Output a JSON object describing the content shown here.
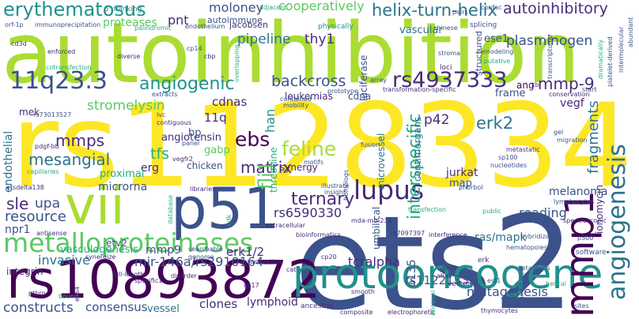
{
  "colors": {
    "background": "#ffffff",
    "purple": "#440154",
    "indigo": "#472c7a",
    "blue": "#3b528b",
    "steel": "#2c728e",
    "teal": "#21908d",
    "green": "#27ad81",
    "lime": "#5cc863",
    "yellowgreen": "#aadc32",
    "yellow": "#fde725"
  },
  "words": [
    "autoinhibition",
    "rs1128334",
    "ets2",
    "rs10893872",
    "protooncogene",
    "vii",
    "p51",
    "metalloproteinases",
    "mmp1",
    "angiogenesis",
    "11q23.3",
    "angiogenic",
    "backcross",
    "rs4937333",
    "lupus",
    "erythematosus",
    "proteases",
    "pnt",
    "moloney",
    "autoimmune",
    "cooperatively",
    "helix-turn-helix",
    "autoinhibitory",
    "plasminogen",
    "pipeline",
    "thy1",
    "ese1",
    "vascular",
    "mmp-9",
    "ang",
    "endothelial",
    "stromelysin",
    "mmps",
    "mesangial",
    "ebs",
    "fli1",
    "feline",
    "p42",
    "erk2",
    "fragments",
    "interspecific",
    "ternary",
    "rs6590330",
    "sle",
    "upa",
    "resource",
    "reading",
    "mmp9",
    "npr1",
    "invasive",
    "mir-146a/rs2910164",
    "integrin",
    "constructs",
    "consensus",
    "vessel",
    "clones",
    "lymphoid",
    "rs11221332",
    "mutagenesis",
    "tcralpha",
    "ras/mapk",
    "vasculogenesis",
    "erk1/2",
    "p135",
    "ionomycin",
    "melanoma",
    "jurkat",
    "map",
    "tfs",
    "erg",
    "matrix",
    "chicken",
    "angiotensin",
    "11q",
    "gabp",
    "bp",
    "synergy",
    "cdnas",
    "leukemias",
    "frame",
    "cdna",
    "luciferase",
    "han",
    "threonine",
    "centimorgans",
    "microvessel",
    "microrna",
    "proximal",
    "vegf",
    "etv2",
    "umbilical",
    "mek",
    "5'-flanking",
    "adjacent",
    "pairs",
    "confac",
    "orf-1p",
    "immunoprecipitation",
    "palindromic",
    "endothelium",
    "jacobsen",
    "physically",
    "chinese",
    "splicing",
    "cd3d",
    "cp14",
    "stroma",
    "remodeling",
    "putative",
    "transcriptome",
    "enforced",
    "diverse",
    "cbp",
    "overlapping",
    "loci",
    "cotransfection",
    "array",
    "transformation-specific",
    "kb",
    "start",
    "extracts",
    "prototype",
    "conservation",
    "contained",
    "mobility",
    "structured",
    "rs73013527",
    "lvc",
    "contiguous",
    "panel",
    "gel",
    "migration",
    "pdgf-bb",
    "vegfr2",
    "motifs",
    "nucleotides",
    "sp100",
    "metastatic",
    "capillaries",
    "phorbol",
    "lymphocytes",
    "etsdelta138",
    "libraries",
    "database",
    "antisense",
    "illustrate",
    "insight",
    "transfection",
    "public",
    "spectroscopic",
    "synergize",
    "searchable",
    "genome",
    "extracellular",
    "bioinformatics",
    "mda-mb-231",
    "rs7097397",
    "interference",
    "hybridization",
    "p300",
    "software",
    "hematopoiesis",
    "full-length",
    "transactivation",
    "cp20",
    "erk",
    "shift",
    "metastasis",
    "ebs4",
    "cat",
    "atlas",
    "est1",
    "helical",
    "vectors",
    "pthrp",
    "smooth",
    "annotated",
    "cp17",
    "ancestral",
    "composite",
    "electrophoretic",
    "thymocytes",
    "sites",
    "dramatically",
    "platelet-derived",
    "intermolecular",
    "disorder",
    "abundant",
    "specific1",
    "bound",
    "minimal",
    "cdk",
    "fusion",
    "homologs",
    "sp1"
  ]
}
